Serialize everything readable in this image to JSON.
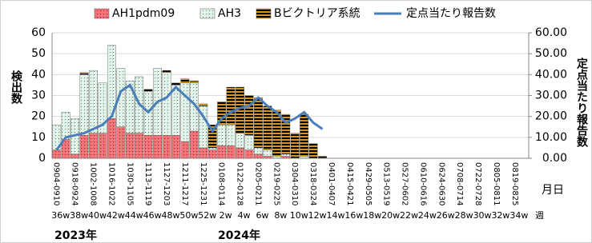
{
  "chart_data": {
    "type": "bar",
    "categories": [
      "0904-0910",
      null,
      "0918-0924",
      null,
      "1002-1008",
      null,
      "1016-1022",
      null,
      "1030-1105",
      null,
      "1113-1119",
      null,
      "1127-1203",
      null,
      "1211-1217",
      null,
      "1225-1231",
      null,
      "0108-0114",
      null,
      "0122-0128",
      null,
      "0205-0211",
      null,
      "0219-0225",
      null,
      "0304-0310",
      null,
      "0318-0324",
      null,
      "0401-0407",
      null,
      "0415-0421",
      null,
      "0429-0505",
      null,
      "0513-0519",
      null,
      "0527-0602",
      null,
      "0610-0616",
      null,
      "0624-0630",
      null,
      "0708-0714",
      null,
      "0722-0728",
      null,
      "0805-0811",
      null,
      "0819-0825",
      null
    ],
    "weeks": [
      "36w",
      null,
      "38w",
      null,
      "40w",
      null,
      "42w",
      null,
      "44w",
      null,
      "46w",
      null,
      "48w",
      null,
      "50w",
      null,
      "52w",
      null,
      "2w",
      null,
      "4w",
      null,
      "6w",
      null,
      "8w",
      null,
      "10w",
      null,
      "12w",
      null,
      "14w",
      null,
      "16w",
      null,
      "18w",
      null,
      "20w",
      null,
      "22w",
      null,
      "24w",
      null,
      "26w",
      null,
      "28w",
      null,
      "30w",
      null,
      "32w",
      null,
      "34w",
      null
    ],
    "x_label": "月日",
    "week_label": "週",
    "years": [
      "2023年",
      "2024年"
    ],
    "y_label": "検出数",
    "y2_label": "定点当たり報告数",
    "ylim": [
      0,
      60
    ],
    "yticks": [
      0,
      10,
      20,
      30,
      40,
      50,
      60
    ],
    "y2lim": [
      0,
      60
    ],
    "y2ticks": [
      {
        "value": 0,
        "label": "0.00"
      },
      {
        "value": 10,
        "label": "10.00"
      },
      {
        "value": 20,
        "label": "20.00"
      },
      {
        "value": 30,
        "label": "30.00"
      },
      {
        "value": 40,
        "label": "40.00"
      },
      {
        "value": 50,
        "label": "50.00"
      },
      {
        "value": 60,
        "label": "60.00"
      }
    ],
    "grid": true,
    "series": [
      {
        "name": "AH1pdm09",
        "color": "#f4747a",
        "values": [
          4,
          9,
          2,
          11,
          12,
          12,
          19,
          15,
          12,
          12,
          11,
          11,
          11,
          11,
          8,
          13,
          5,
          4,
          6,
          6,
          5,
          4,
          2,
          1,
          0,
          1,
          0,
          0,
          0,
          0,
          null,
          null,
          null,
          null,
          null,
          null,
          null,
          null,
          null,
          null,
          null,
          null,
          null,
          null,
          null,
          null,
          null,
          null,
          null,
          null,
          null,
          null
        ]
      },
      {
        "name": "AH3",
        "color": "#e4f4ea",
        "values": [
          12,
          13,
          17,
          29,
          30,
          24,
          35,
          28,
          25,
          27,
          21,
          32,
          30,
          24,
          28,
          23,
          20,
          1,
          10,
          10,
          7,
          7,
          3,
          3,
          1,
          1,
          0,
          1,
          0,
          0,
          null,
          null,
          null,
          null,
          null,
          null,
          null,
          null,
          null,
          null,
          null,
          null,
          null,
          null,
          null,
          null,
          null,
          null,
          null,
          null,
          null,
          null
        ]
      },
      {
        "name": "Bビクトリア系統",
        "color": "#d8961c",
        "values": [
          0,
          0,
          0,
          1,
          0,
          0,
          0,
          0,
          0,
          0,
          1,
          0,
          1,
          1,
          2,
          1,
          1,
          11,
          11,
          18,
          22,
          19,
          24,
          21,
          22,
          19,
          12,
          20,
          7,
          1,
          null,
          null,
          null,
          null,
          null,
          null,
          null,
          null,
          null,
          null,
          null,
          null,
          null,
          null,
          null,
          null,
          null,
          null,
          null,
          null,
          null,
          null
        ]
      },
      {
        "name": "定点当たり報告数",
        "type": "line",
        "axis": "y2",
        "color": "#4a7ebb",
        "values": [
          4,
          10,
          11,
          12,
          14,
          16,
          20,
          32,
          35,
          26,
          22,
          27,
          29,
          34,
          30,
          26,
          20,
          13,
          19,
          22,
          24,
          25,
          29,
          25,
          22,
          17,
          19,
          22,
          17,
          14,
          null,
          null,
          null,
          null,
          null,
          null,
          null,
          null,
          null,
          null,
          null,
          null,
          null,
          null,
          null,
          null,
          null,
          null,
          null,
          null,
          null,
          null
        ]
      }
    ]
  }
}
